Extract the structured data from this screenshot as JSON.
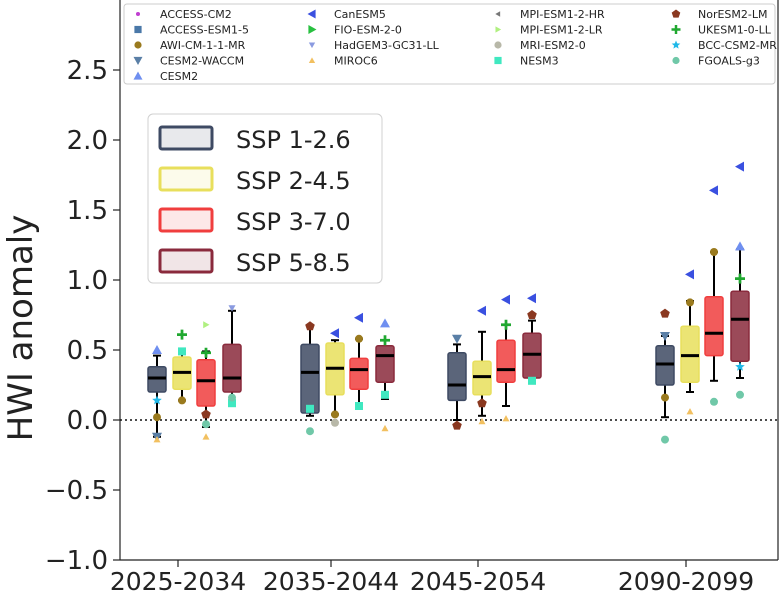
{
  "chart_data": {
    "type": "box",
    "ylabel": "HWI anomaly",
    "ylim": [
      -1.0,
      2.6
    ],
    "yticks": [
      -1.0,
      -0.5,
      0.0,
      0.5,
      1.0,
      1.5,
      2.0,
      2.5
    ],
    "ytick_labels": [
      "−1.0",
      "−0.5",
      "0.0",
      "0.5",
      "1.0",
      "1.5",
      "2.0",
      "2.5"
    ],
    "zero_line": "dotted",
    "categories": [
      "2025-2034",
      "2035-2044",
      "2045-2054",
      "2090-2099"
    ],
    "scenario_legend_position": "upper-left",
    "model_legend_position": "top",
    "series": [
      {
        "name": "SSP 1-2.6",
        "color": "#3e4a63",
        "boxes": [
          {
            "whislo": -0.12,
            "q1": 0.2,
            "med": 0.3,
            "q3": 0.38,
            "whishi": 0.46
          },
          {
            "whislo": 0.03,
            "q1": 0.05,
            "med": 0.34,
            "q3": 0.54,
            "whishi": 0.67
          },
          {
            "whislo": 0.0,
            "q1": 0.14,
            "med": 0.25,
            "q3": 0.48,
            "whishi": 0.54
          },
          {
            "whislo": 0.02,
            "q1": 0.25,
            "med": 0.4,
            "q3": 0.53,
            "whishi": 0.6
          }
        ]
      },
      {
        "name": "SSP 2-4.5",
        "color": "#e8df5c",
        "boxes": [
          {
            "whislo": 0.14,
            "q1": 0.22,
            "med": 0.34,
            "q3": 0.45,
            "whishi": 0.5
          },
          {
            "whislo": 0.04,
            "q1": 0.18,
            "med": 0.37,
            "q3": 0.55,
            "whishi": 0.57
          },
          {
            "whislo": 0.03,
            "q1": 0.18,
            "med": 0.31,
            "q3": 0.42,
            "whishi": 0.63
          },
          {
            "whislo": 0.2,
            "q1": 0.27,
            "med": 0.46,
            "q3": 0.67,
            "whishi": 0.85
          }
        ]
      },
      {
        "name": "SSP 3-7.0",
        "color": "#f03e3e",
        "boxes": [
          {
            "whislo": -0.05,
            "q1": 0.1,
            "med": 0.28,
            "q3": 0.43,
            "whishi": 0.49
          },
          {
            "whislo": 0.08,
            "q1": 0.22,
            "med": 0.36,
            "q3": 0.44,
            "whishi": 0.58
          },
          {
            "whislo": 0.1,
            "q1": 0.27,
            "med": 0.36,
            "q3": 0.57,
            "whishi": 0.68
          },
          {
            "whislo": 0.28,
            "q1": 0.46,
            "med": 0.62,
            "q3": 0.88,
            "whishi": 1.2
          }
        ]
      },
      {
        "name": "SSP 5-8.5",
        "color": "#8a2a3c",
        "boxes": [
          {
            "whislo": 0.14,
            "q1": 0.2,
            "med": 0.3,
            "q3": 0.54,
            "whishi": 0.78
          },
          {
            "whislo": 0.15,
            "q1": 0.27,
            "med": 0.46,
            "q3": 0.53,
            "whishi": 0.57
          },
          {
            "whislo": 0.27,
            "q1": 0.3,
            "med": 0.47,
            "q3": 0.62,
            "whishi": 0.71
          },
          {
            "whislo": 0.3,
            "q1": 0.42,
            "med": 0.72,
            "q3": 0.92,
            "whishi": 1.22
          }
        ]
      }
    ],
    "models": [
      {
        "name": "ACCESS-CM2",
        "marker": "dot",
        "color": "#c03fd0"
      },
      {
        "name": "ACCESS-ESM1-5",
        "marker": "square",
        "color": "#4a78a8"
      },
      {
        "name": "AWI-CM-1-1-MR",
        "marker": "circle",
        "color": "#9a7a1e"
      },
      {
        "name": "CESM2-WACCM",
        "marker": "tri-down",
        "color": "#5a7fa6"
      },
      {
        "name": "CESM2",
        "marker": "tri-up",
        "color": "#6f8ff0"
      },
      {
        "name": "CanESM5",
        "marker": "tri-left",
        "color": "#3a50e0"
      },
      {
        "name": "FIO-ESM-2-0",
        "marker": "tri-right",
        "color": "#28c040"
      },
      {
        "name": "HadGEM3-GC31-LL",
        "marker": "tri-down-small",
        "color": "#8a9ae0"
      },
      {
        "name": "MIROC6",
        "marker": "tri-up-small",
        "color": "#f2c060"
      },
      {
        "name": "MPI-ESM1-2-HR",
        "marker": "tri-left-small",
        "color": "#777777"
      },
      {
        "name": "MPI-ESM1-2-LR",
        "marker": "tri-right-small",
        "color": "#b0f080"
      },
      {
        "name": "MRI-ESM2-0",
        "marker": "circle",
        "color": "#b8b8a8"
      },
      {
        "name": "NESM3",
        "marker": "square",
        "color": "#40e8c0"
      },
      {
        "name": "NorESM2-LM",
        "marker": "pentagon",
        "color": "#8a3820"
      },
      {
        "name": "UKESM1-0-LL",
        "marker": "plus",
        "color": "#20a830"
      },
      {
        "name": "BCC-CSM2-MR",
        "marker": "star",
        "color": "#20b8e8"
      },
      {
        "name": "FGOALS-g3",
        "marker": "circle",
        "color": "#70c8a8"
      }
    ],
    "points": [
      {
        "cat": 0,
        "s": 0,
        "m": "CESM2",
        "y": 0.5
      },
      {
        "cat": 0,
        "s": 0,
        "m": "CESM2-WACCM",
        "y": -0.12
      },
      {
        "cat": 0,
        "s": 0,
        "m": "MIROC6",
        "y": -0.14
      },
      {
        "cat": 0,
        "s": 0,
        "m": "BCC-CSM2-MR",
        "y": 0.14
      },
      {
        "cat": 0,
        "s": 0,
        "m": "AWI-CM-1-1-MR",
        "y": 0.02
      },
      {
        "cat": 0,
        "s": 1,
        "m": "UKESM1-0-LL",
        "y": 0.61
      },
      {
        "cat": 0,
        "s": 1,
        "m": "NESM3",
        "y": 0.49
      },
      {
        "cat": 0,
        "s": 1,
        "m": "AWI-CM-1-1-MR",
        "y": 0.14
      },
      {
        "cat": 0,
        "s": 2,
        "m": "MPI-ESM1-2-LR",
        "y": 0.68
      },
      {
        "cat": 0,
        "s": 2,
        "m": "NorESM2-LM",
        "y": 0.04
      },
      {
        "cat": 0,
        "s": 2,
        "m": "MIROC6",
        "y": -0.12
      },
      {
        "cat": 0,
        "s": 2,
        "m": "FGOALS-g3",
        "y": -0.03
      },
      {
        "cat": 0,
        "s": 2,
        "m": "UKESM1-0-LL",
        "y": 0.48
      },
      {
        "cat": 0,
        "s": 3,
        "m": "HadGEM3-GC31-LL",
        "y": 0.8
      },
      {
        "cat": 0,
        "s": 3,
        "m": "NESM3",
        "y": 0.12
      },
      {
        "cat": 0,
        "s": 3,
        "m": "FGOALS-g3",
        "y": 0.16
      },
      {
        "cat": 1,
        "s": 0,
        "m": "NorESM2-LM",
        "y": 0.67
      },
      {
        "cat": 1,
        "s": 0,
        "m": "FGOALS-g3",
        "y": -0.08
      },
      {
        "cat": 1,
        "s": 0,
        "m": "NESM3",
        "y": 0.08
      },
      {
        "cat": 1,
        "s": 1,
        "m": "CanESM5",
        "y": 0.62
      },
      {
        "cat": 1,
        "s": 1,
        "m": "MRI-ESM2-0",
        "y": -0.02
      },
      {
        "cat": 1,
        "s": 1,
        "m": "AWI-CM-1-1-MR",
        "y": 0.04
      },
      {
        "cat": 1,
        "s": 2,
        "m": "CanESM5",
        "y": 0.73
      },
      {
        "cat": 1,
        "s": 2,
        "m": "AWI-CM-1-1-MR",
        "y": 0.58
      },
      {
        "cat": 1,
        "s": 2,
        "m": "NESM3",
        "y": 0.1
      },
      {
        "cat": 1,
        "s": 3,
        "m": "CESM2",
        "y": 0.69
      },
      {
        "cat": 1,
        "s": 3,
        "m": "MIROC6",
        "y": -0.06
      },
      {
        "cat": 1,
        "s": 3,
        "m": "UKESM1-0-LL",
        "y": 0.57
      },
      {
        "cat": 1,
        "s": 3,
        "m": "NESM3",
        "y": 0.18
      },
      {
        "cat": 2,
        "s": 0,
        "m": "NorESM2-LM",
        "y": -0.04
      },
      {
        "cat": 2,
        "s": 0,
        "m": "CESM2-WACCM",
        "y": 0.58
      },
      {
        "cat": 2,
        "s": 1,
        "m": "CanESM5",
        "y": 0.78
      },
      {
        "cat": 2,
        "s": 1,
        "m": "MIROC6",
        "y": -0.01
      },
      {
        "cat": 2,
        "s": 1,
        "m": "NorESM2-LM",
        "y": 0.12
      },
      {
        "cat": 2,
        "s": 2,
        "m": "CanESM5",
        "y": 0.86
      },
      {
        "cat": 2,
        "s": 2,
        "m": "UKESM1-0-LL",
        "y": 0.68
      },
      {
        "cat": 2,
        "s": 2,
        "m": "MIROC6",
        "y": 0.01
      },
      {
        "cat": 2,
        "s": 3,
        "m": "CanESM5",
        "y": 0.87
      },
      {
        "cat": 2,
        "s": 3,
        "m": "NorESM2-LM",
        "y": 0.75
      },
      {
        "cat": 2,
        "s": 3,
        "m": "NESM3",
        "y": 0.28
      },
      {
        "cat": 3,
        "s": 0,
        "m": "NorESM2-LM",
        "y": 0.76
      },
      {
        "cat": 3,
        "s": 0,
        "m": "FGOALS-g3",
        "y": -0.14
      },
      {
        "cat": 3,
        "s": 0,
        "m": "AWI-CM-1-1-MR",
        "y": 0.16
      },
      {
        "cat": 3,
        "s": 0,
        "m": "CESM2-WACCM",
        "y": 0.6
      },
      {
        "cat": 3,
        "s": 1,
        "m": "CanESM5",
        "y": 1.04
      },
      {
        "cat": 3,
        "s": 1,
        "m": "MIROC6",
        "y": 0.06
      },
      {
        "cat": 3,
        "s": 1,
        "m": "AWI-CM-1-1-MR",
        "y": 0.84
      },
      {
        "cat": 3,
        "s": 2,
        "m": "CanESM5",
        "y": 1.64
      },
      {
        "cat": 3,
        "s": 2,
        "m": "AWI-CM-1-1-MR",
        "y": 1.2
      },
      {
        "cat": 3,
        "s": 2,
        "m": "FGOALS-g3",
        "y": 0.13
      },
      {
        "cat": 3,
        "s": 3,
        "m": "CanESM5",
        "y": 1.81
      },
      {
        "cat": 3,
        "s": 3,
        "m": "UKESM1-0-LL",
        "y": 1.01
      },
      {
        "cat": 3,
        "s": 3,
        "m": "FGOALS-g3",
        "y": 0.18
      },
      {
        "cat": 3,
        "s": 3,
        "m": "BCC-CSM2-MR",
        "y": 0.38
      },
      {
        "cat": 3,
        "s": 3,
        "m": "CESM2",
        "y": 1.24
      }
    ]
  }
}
